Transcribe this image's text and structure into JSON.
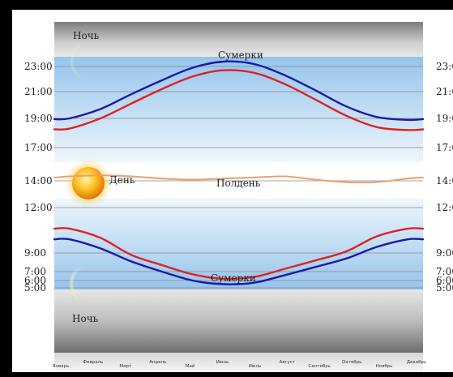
{
  "chart_data": {
    "type": "line",
    "title": "",
    "xlabel": "",
    "ylabel": "",
    "months": [
      "Январь",
      "Февраль",
      "Март",
      "Апрель",
      "Май",
      "Июнь",
      "Июль",
      "Август",
      "Сентябрь",
      "Октябрь",
      "Ноябрь",
      "Декабрь"
    ],
    "y_ticks": [
      "23:00",
      "21:00",
      "19:00",
      "17:00",
      "14:00",
      "12:00",
      "9:00",
      "7:00",
      "6:00",
      "5:00"
    ],
    "ylim": [
      0,
      24
    ],
    "labels": {
      "night_top": "Ночь",
      "night_bottom": "Ночь",
      "day": "День",
      "noon": "Полдень",
      "twilight_top": "Сумерки",
      "twilight_bottom": "Сумерки"
    },
    "series": [
      {
        "key": "evening_twilight",
        "color": "#1a1aa8",
        "values": [
          19.0,
          19.7,
          20.8,
          21.9,
          22.9,
          23.4,
          23.2,
          22.3,
          21.1,
          19.9,
          19.1,
          18.9
        ]
      },
      {
        "key": "sunset",
        "color": "#dd2222",
        "values": [
          18.3,
          19.0,
          20.1,
          21.2,
          22.2,
          22.7,
          22.5,
          21.6,
          20.4,
          19.2,
          18.4,
          18.2
        ]
      },
      {
        "key": "noon",
        "color": "#e8a070",
        "values": [
          14.4,
          14.5,
          14.4,
          14.2,
          14.1,
          14.2,
          14.3,
          14.4,
          14.1,
          13.9,
          13.9,
          14.2
        ]
      },
      {
        "key": "sunrise",
        "color": "#dd2222",
        "values": [
          10.6,
          10.0,
          8.8,
          7.7,
          6.7,
          6.2,
          6.4,
          7.3,
          8.2,
          9.1,
          10.1,
          10.6
        ]
      },
      {
        "key": "morning_twilight",
        "color": "#1a1aa8",
        "values": [
          9.9,
          9.3,
          8.1,
          7.0,
          6.0,
          5.5,
          5.7,
          6.6,
          7.5,
          8.4,
          9.4,
          9.9
        ]
      }
    ],
    "colors": {
      "night_dark": "#8f8f8f",
      "twilight_band": "#a8cfee",
      "day_band": "#ffffff",
      "grid": "#888888"
    }
  }
}
